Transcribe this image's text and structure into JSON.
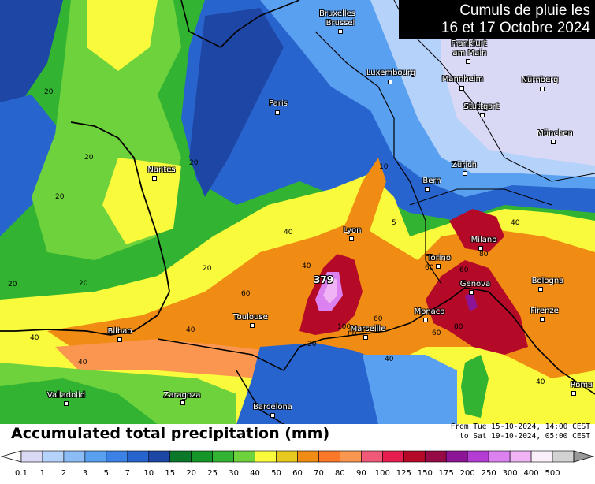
{
  "title_box": {
    "line1": "Cumuls de pluie les",
    "line2": "16 et 17 Octobre 2024"
  },
  "footer": {
    "title": "Accumulated total precipitation (mm)",
    "period_from": "From Tue 15-10-2024, 14:00 CEST",
    "period_to": "to Sat 19-10-2024, 05:00 CEST"
  },
  "max_value_label": "379",
  "legend": {
    "ticks": [
      "0.1",
      "1",
      "2",
      "3",
      "5",
      "7",
      "10",
      "15",
      "20",
      "25",
      "30",
      "40",
      "50",
      "60",
      "70",
      "80",
      "90",
      "100",
      "125",
      "150",
      "175",
      "200",
      "250",
      "300",
      "400",
      "500"
    ],
    "colors": [
      "#d9d9f5",
      "#b4d2fa",
      "#8cbcf5",
      "#5aa0f0",
      "#3c82e6",
      "#2864cd",
      "#1e46a5",
      "#0a7828",
      "#149628",
      "#32b432",
      "#6ed23c",
      "#fafa3c",
      "#e6c81e",
      "#f08c14",
      "#fa7828",
      "#fa9650",
      "#f05a78",
      "#e61e50",
      "#b40a28",
      "#960a46",
      "#8c1496",
      "#b43cd2",
      "#dc82f0",
      "#f0b4f5",
      "#faf0fa",
      "#d2d2d2"
    ]
  },
  "cities": [
    {
      "name": "Bruxelles",
      "extra": "Brussel"
    },
    {
      "name": "Frankfurt",
      "extra": "am Main"
    },
    {
      "name": "Luxembourg"
    },
    {
      "name": "Mannheim"
    },
    {
      "name": "Nürnberg"
    },
    {
      "name": "Paris"
    },
    {
      "name": "Stuttgart"
    },
    {
      "name": "München"
    },
    {
      "name": "Nantes"
    },
    {
      "name": "Zürich"
    },
    {
      "name": "Bern"
    },
    {
      "name": "Lyon"
    },
    {
      "name": "Milano"
    },
    {
      "name": "Torino"
    },
    {
      "name": "Genova"
    },
    {
      "name": "Bologna"
    },
    {
      "name": "Firenze"
    },
    {
      "name": "Monaco"
    },
    {
      "name": "Marseille"
    },
    {
      "name": "Toulouse"
    },
    {
      "name": "Bilbao"
    },
    {
      "name": "Valladolid"
    },
    {
      "name": "Zaragoza"
    },
    {
      "name": "Barcelona"
    },
    {
      "name": "Roma"
    }
  ],
  "contour_labels": [
    "20",
    "20",
    "20",
    "20",
    "20",
    "20",
    "20",
    "20",
    "40",
    "40",
    "40",
    "40",
    "40",
    "40",
    "40",
    "40",
    "60",
    "60",
    "60",
    "60",
    "60",
    "80",
    "80",
    "80",
    "100",
    "5",
    "10"
  ]
}
